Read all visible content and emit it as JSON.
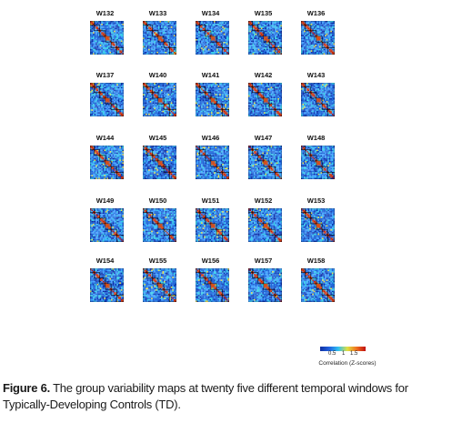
{
  "figure": {
    "windows": [
      "W132",
      "W133",
      "W134",
      "W135",
      "W136",
      "W137",
      "W140",
      "W141",
      "W142",
      "W143",
      "W144",
      "W145",
      "W146",
      "W147",
      "W148",
      "W149",
      "W150",
      "W151",
      "W152",
      "W153",
      "W154",
      "W155",
      "W156",
      "W157",
      "W158"
    ],
    "matrix_colors": {
      "background": "#1e66d8",
      "dark": "#0a2ea8",
      "light": "#3fa0ff",
      "cyan": "#35d0e8",
      "diagonal": "#d9531a",
      "diagonal_core": "#b5160f",
      "highlight": "#f0e040",
      "box_outline": "#000000"
    },
    "colorbar": {
      "stops": [
        "#1030a0",
        "#2060e0",
        "#30c0f0",
        "#e0e040",
        "#f07020",
        "#c01010"
      ],
      "ticks": [
        "0.5",
        "1",
        "1.5"
      ],
      "label": "Correlation (Z-scores)"
    }
  },
  "caption": {
    "label": "Figure 6.",
    "text": "The group variability maps at twenty five different temporal windows for Typically-Developing Controls (TD)."
  }
}
